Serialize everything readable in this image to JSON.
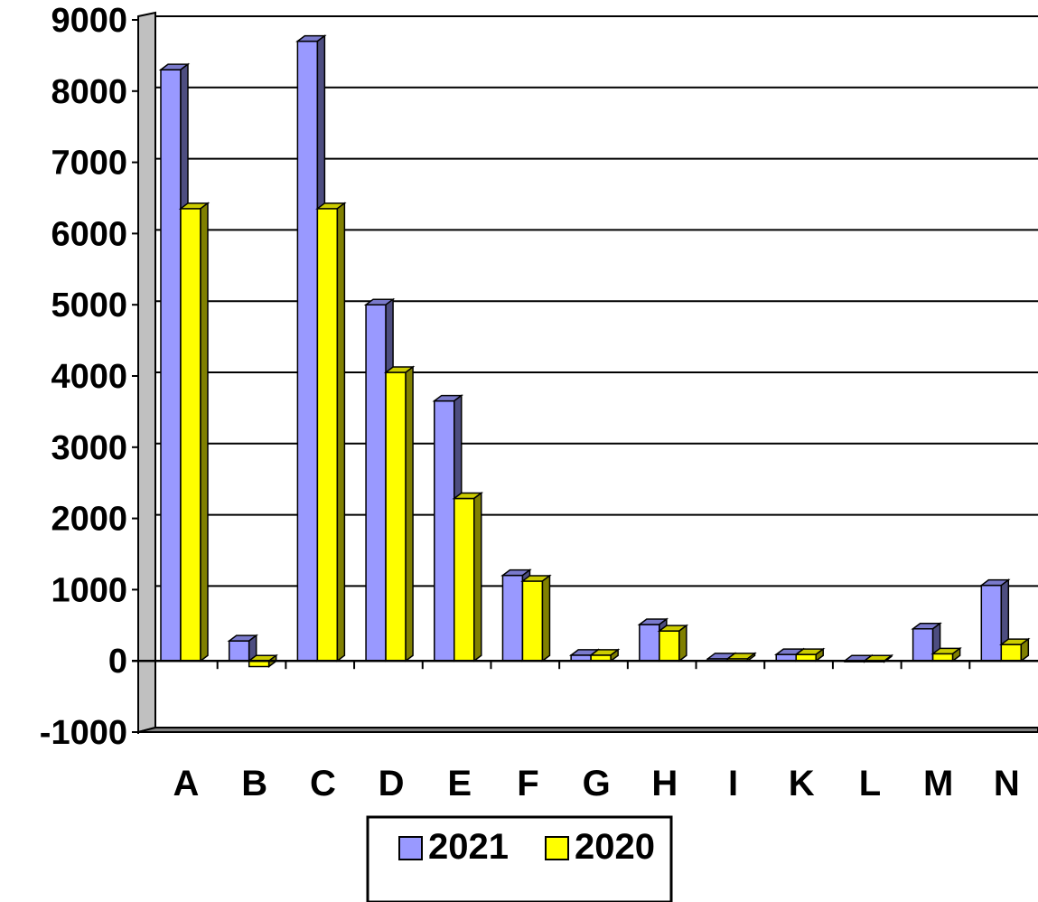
{
  "chart_data": {
    "type": "bar",
    "categories": [
      "A",
      "B",
      "C",
      "D",
      "E",
      "F",
      "G",
      "H",
      "I",
      "K",
      "L",
      "M",
      "N"
    ],
    "series": [
      {
        "name": "2021",
        "values": [
          8300,
          280,
          8700,
          5000,
          3650,
          1200,
          80,
          510,
          30,
          90,
          0,
          450,
          1060
        ],
        "color": "#9999ff"
      },
      {
        "name": "2020",
        "values": [
          6350,
          -80,
          6350,
          4050,
          2280,
          1120,
          80,
          420,
          30,
          90,
          0,
          100,
          230
        ],
        "color": "#ffff00"
      }
    ],
    "ylim": [
      -1000,
      9000
    ],
    "yticks": [
      -1000,
      0,
      1000,
      2000,
      3000,
      4000,
      5000,
      6000,
      7000,
      8000,
      9000
    ],
    "grid": true,
    "legend": "bottom",
    "title": "",
    "xlabel": "",
    "ylabel": ""
  }
}
